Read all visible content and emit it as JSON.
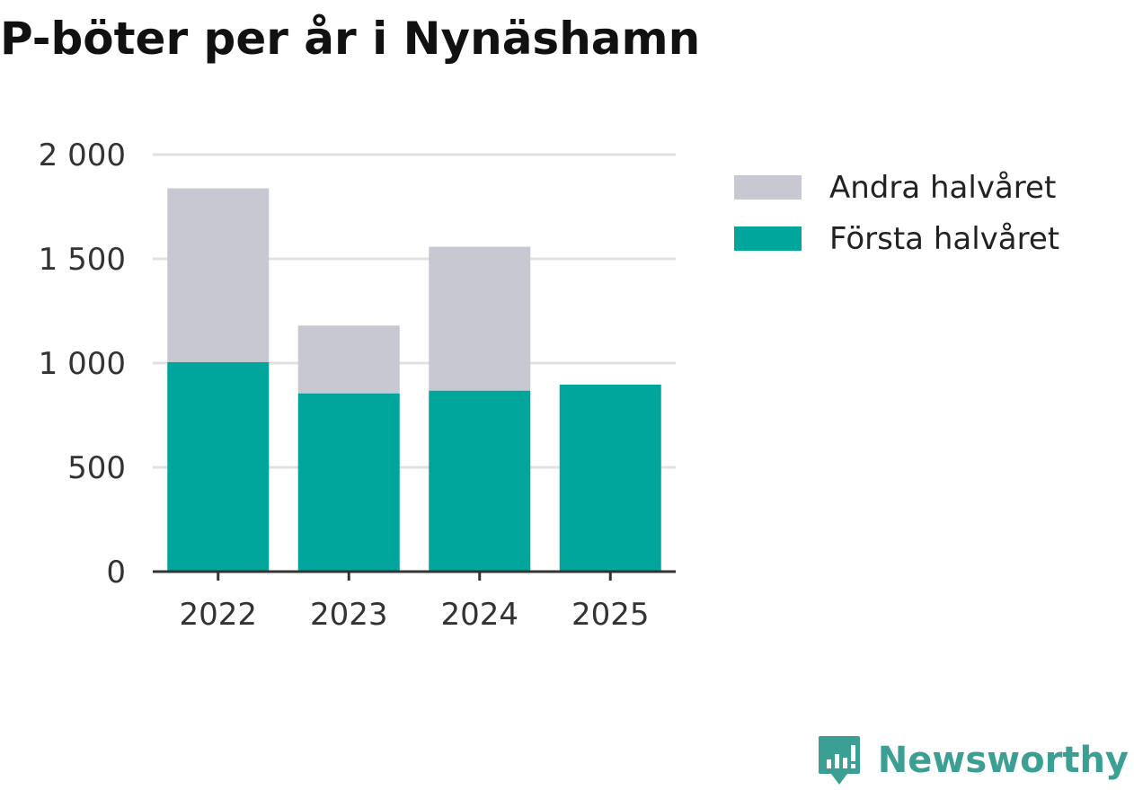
{
  "title": "P-böter per år i Nynäshamn",
  "brand": {
    "name": "Newsworthy",
    "icon": "newsworthy-logo-icon",
    "color": "#3c9f94"
  },
  "chart_data": {
    "type": "bar",
    "stacked": true,
    "title": "P-böter per år i Nynäshamn",
    "xlabel": "",
    "ylabel": "",
    "categories": [
      "2022",
      "2023",
      "2024",
      "2025"
    ],
    "series": [
      {
        "name": "Första halvåret",
        "color": "#00a59b",
        "values": [
          1005,
          855,
          868,
          897
        ]
      },
      {
        "name": "Andra halvåret",
        "color": "#c8c8d2",
        "values": [
          833,
          325,
          690,
          0
        ]
      }
    ],
    "ylim": [
      0,
      2000
    ],
    "yticks": [
      0,
      500,
      1000,
      1500,
      2000
    ],
    "ytick_labels": [
      "0",
      "500",
      "1 000",
      "1 500",
      "2 000"
    ],
    "grid": true,
    "legend_position": "right",
    "legend": [
      "Andra halvåret",
      "Första halvåret"
    ]
  }
}
